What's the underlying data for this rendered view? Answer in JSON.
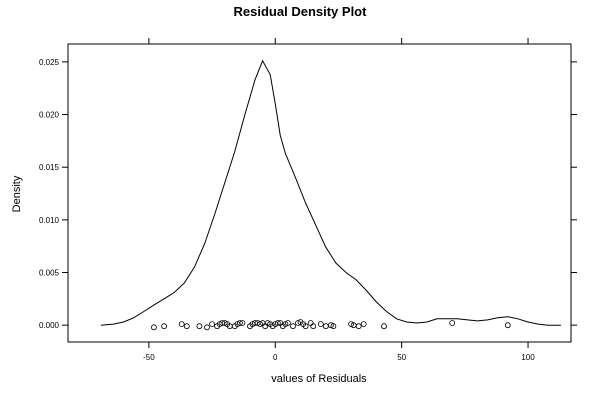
{
  "chart_data": {
    "type": "line",
    "title": "Residual Density Plot",
    "xlabel": "values of Residuals",
    "ylabel": "Density",
    "xlim": [
      -82,
      117
    ],
    "ylim": [
      -0.0016,
      0.0267
    ],
    "x_ticks": [
      -50,
      0,
      50,
      100
    ],
    "x_tick_labels": [
      "-50",
      "0",
      "50",
      "100"
    ],
    "y_ticks": [
      0,
      0.005,
      0.01,
      0.015,
      0.02,
      0.025
    ],
    "y_tick_labels": [
      "0.000",
      "0.005",
      "0.010",
      "0.015",
      "0.020",
      "0.025"
    ],
    "grid": false,
    "density": {
      "x": [
        -69,
        -64,
        -60,
        -56,
        -52,
        -48,
        -44,
        -40,
        -36,
        -32,
        -28,
        -24,
        -20,
        -16,
        -12,
        -8,
        -5,
        -2,
        0,
        2,
        4,
        8,
        12,
        16,
        20,
        24,
        28,
        32,
        36,
        40,
        44,
        48,
        52,
        56,
        60,
        64,
        68,
        72,
        76,
        80,
        84,
        88,
        92,
        96,
        100,
        104,
        108,
        113
      ],
      "y": [
        0.0,
        0.0001,
        0.0003,
        0.0007,
        0.0013,
        0.0019,
        0.0025,
        0.0031,
        0.004,
        0.0055,
        0.0077,
        0.0105,
        0.0135,
        0.0165,
        0.02,
        0.0233,
        0.0251,
        0.0238,
        0.021,
        0.018,
        0.0163,
        0.014,
        0.0116,
        0.0095,
        0.0074,
        0.0059,
        0.005,
        0.0043,
        0.0033,
        0.0022,
        0.0013,
        0.0006,
        0.0003,
        0.0002,
        0.0003,
        0.0006,
        0.0006,
        0.0006,
        0.0005,
        0.0004,
        0.0005,
        0.0007,
        0.0008,
        0.0006,
        0.0003,
        0.0001,
        0.0,
        0.0
      ]
    },
    "points": {
      "x": [
        -48,
        -44,
        -37,
        -35,
        -30,
        -27,
        -25,
        -23,
        -22,
        -21,
        -20,
        -19,
        -18,
        -16,
        -15,
        -14,
        -13,
        -10,
        -9,
        -8,
        -7,
        -6,
        -5,
        -4,
        -3,
        -2,
        -1,
        0,
        1,
        2,
        3,
        4,
        5,
        7,
        9,
        10,
        11,
        12,
        14,
        15,
        18,
        20,
        22,
        23,
        30,
        31,
        33,
        35,
        43,
        70,
        92
      ],
      "y": [
        -0.0002,
        -0.0001,
        0.0001,
        -0.0001,
        -0.0001,
        -0.0002,
        0.0001,
        -0.0001,
        0.0001,
        0.0002,
        0.0002,
        0.0001,
        -0.0001,
        -0.0001,
        0.0001,
        0.0002,
        0.0002,
        -0.0001,
        0.0001,
        0.0002,
        0.0002,
        0.0001,
        0.0002,
        -0.0001,
        0.0002,
        0.0001,
        -0.0001,
        0.0001,
        0.0002,
        0.0002,
        -0.0001,
        0.0001,
        0.0002,
        -0.0001,
        0.0002,
        0.0003,
        0.0001,
        -0.0001,
        0.0002,
        -0.0001,
        0.0001,
        -0.0001,
        0.0,
        -0.0001,
        0.0001,
        0.0,
        -0.0001,
        0.0001,
        -0.0001,
        0.0002,
        0.0
      ]
    }
  }
}
